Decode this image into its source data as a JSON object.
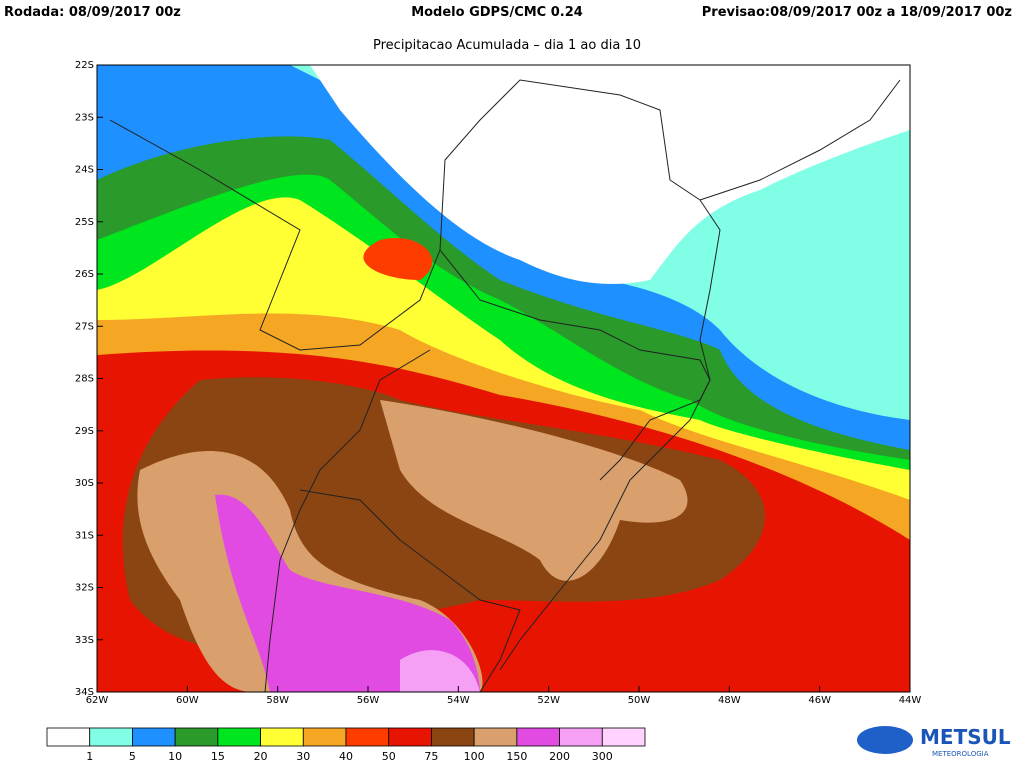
{
  "header": {
    "run": "Rodada: 08/09/2017 00z",
    "model": "Modelo GDPS/CMC 0.24",
    "forecast": "Previsao:08/09/2017 00z a 18/09/2017 00z",
    "subtitle": "Precipitacao Acumulada – dia 1 ao dia 10"
  },
  "map": {
    "lat_labels": [
      "22S",
      "23S",
      "24S",
      "25S",
      "26S",
      "27S",
      "28S",
      "29S",
      "30S",
      "31S",
      "32S",
      "33S",
      "34S"
    ],
    "lon_labels": [
      "62W",
      "60W",
      "58W",
      "56W",
      "54W",
      "52W",
      "50W",
      "48W",
      "46W",
      "44W"
    ]
  },
  "colorbar": {
    "colors": [
      "#ffffff",
      "#80ffe6",
      "#1e90ff",
      "#2a9a2a",
      "#00e61e",
      "#ffff33",
      "#f5a623",
      "#ff3c00",
      "#e61400",
      "#8b4513",
      "#d9a06e",
      "#e14be1",
      "#f5a0f5",
      "#ffd2ff"
    ],
    "labels": [
      1,
      5,
      10,
      15,
      20,
      30,
      40,
      50,
      75,
      100,
      150,
      200,
      300
    ]
  },
  "logo": {
    "name": "METSUL",
    "sub": "METEOROLOGIA"
  }
}
